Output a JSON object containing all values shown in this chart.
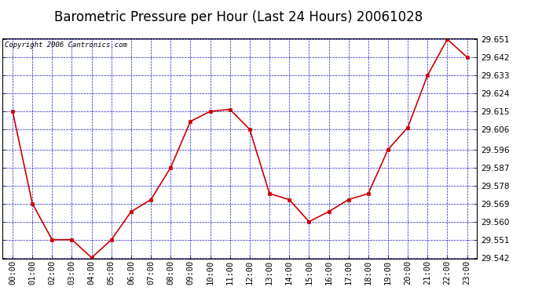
{
  "title": "Barometric Pressure per Hour (Last 24 Hours) 20061028",
  "copyright": "Copyright 2006 Cantronics.com",
  "hours": [
    "00:00",
    "01:00",
    "02:00",
    "03:00",
    "04:00",
    "05:00",
    "06:00",
    "07:00",
    "08:00",
    "09:00",
    "10:00",
    "11:00",
    "12:00",
    "13:00",
    "14:00",
    "15:00",
    "16:00",
    "17:00",
    "18:00",
    "19:00",
    "20:00",
    "21:00",
    "22:00",
    "23:00"
  ],
  "values": [
    29.615,
    29.569,
    29.551,
    29.551,
    29.542,
    29.551,
    29.565,
    29.571,
    29.587,
    29.61,
    29.615,
    29.616,
    29.606,
    29.574,
    29.571,
    29.56,
    29.565,
    29.571,
    29.574,
    29.596,
    29.607,
    29.633,
    29.651,
    29.642
  ],
  "y_min": 29.542,
  "y_max": 29.651,
  "y_ticks": [
    29.542,
    29.551,
    29.56,
    29.569,
    29.578,
    29.587,
    29.596,
    29.606,
    29.615,
    29.624,
    29.633,
    29.642,
    29.651
  ],
  "line_color": "#cc0000",
  "marker_color": "#cc0000",
  "bg_color": "#ffffff",
  "grid_color": "#0000cc",
  "title_fontsize": 12,
  "copyright_fontsize": 6.5,
  "tick_fontsize": 7.5
}
